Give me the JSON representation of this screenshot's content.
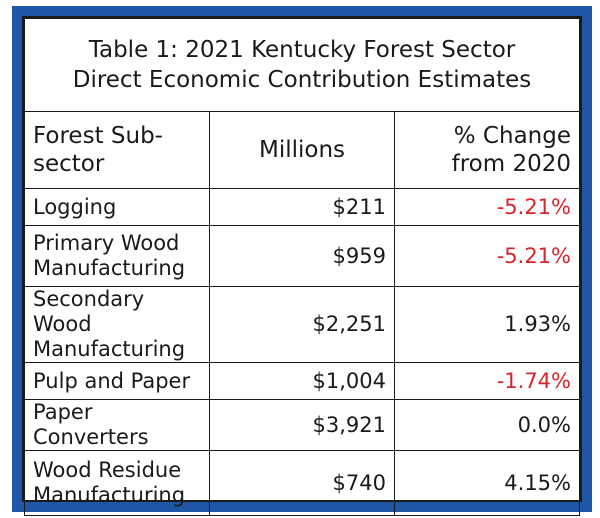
{
  "table": {
    "title_line1": "Table 1: 2021 Kentucky Forest Sector",
    "title_line2": "Direct Economic Contribution Estimates",
    "headers": {
      "subsector": "Forest Sub-sector",
      "millions": "Millions",
      "change_line1": "% Change",
      "change_line2": "from 2020"
    },
    "rows": [
      {
        "sector_line1": "Logging",
        "sector_line2": "",
        "value": "$211",
        "change": "-5.21%"
      },
      {
        "sector_line1": "Primary Wood",
        "sector_line2": "Manufacturing",
        "value": "$959",
        "change": "-5.21%"
      },
      {
        "sector_line1": "Secondary Wood",
        "sector_line2": "Manufacturing",
        "value": "$2,251",
        "change": "1.93%"
      },
      {
        "sector_line1": "Pulp and Paper",
        "sector_line2": "",
        "value": "$1,004",
        "change": "-1.74%"
      },
      {
        "sector_line1": "Paper Converters",
        "sector_line2": "",
        "value": "$3,921",
        "change": "0.0%"
      },
      {
        "sector_line1": "Wood Residue",
        "sector_line2": "Manufacturing",
        "value": "$740",
        "change": "4.15%"
      }
    ]
  },
  "colors": {
    "frame": "#1f56a6",
    "negative": "#d7262b",
    "text": "#1a1a1a"
  }
}
